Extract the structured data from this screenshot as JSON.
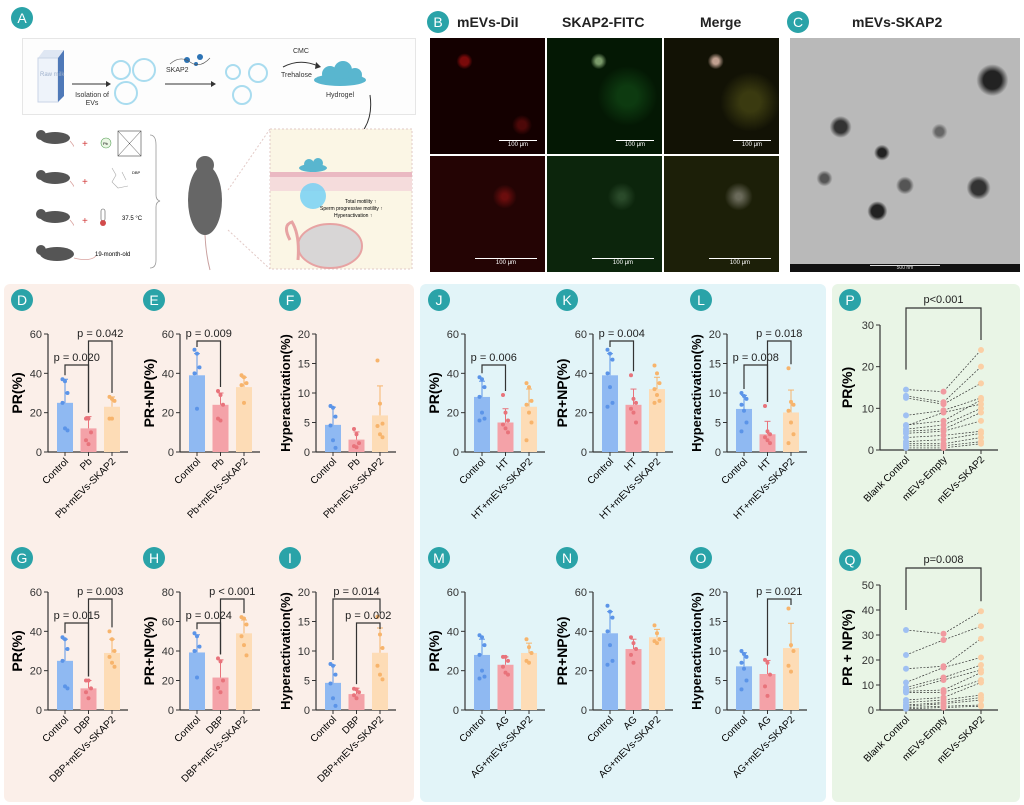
{
  "panelA": {
    "label": "A",
    "milk": "Raw milk",
    "isolation": "Isolation of EVs",
    "skap2": "SKAP2",
    "cmc": "CMC",
    "trehalose": "Trehalose",
    "hydrogel": "Hydrogel",
    "pb": "Pb",
    "dbp": "DBP",
    "temp": "37.5 °C",
    "age": "19-month-old",
    "outcome1": "Total motility ↑",
    "outcome2": "Sperm progressive motility ↑",
    "outcome3": "Hyperactivation ↑"
  },
  "panelB": {
    "label": "B",
    "col1": "mEVs-DiI",
    "col2": "SKAP2-FITC",
    "col3": "Merge",
    "scale": "100 μm"
  },
  "panelC": {
    "label": "C",
    "title": "mEVs-SKAP2",
    "scale": "500 nm"
  },
  "colors": {
    "pink_panel": "#fbefe9",
    "blue_panel": "#e2f4f8",
    "green_panel": "#e9f5e6",
    "label_teal": "#2aa3a8",
    "control": "#8fb9f2",
    "treatment": "#f4a2a8",
    "skap2": "#fddcb6"
  },
  "chart_data": [
    {
      "id": "D",
      "type": "bar",
      "label": "D",
      "ylabel": "PR(%)",
      "ylim": [
        0,
        60
      ],
      "yticks": [
        "0",
        "20",
        "40",
        "60"
      ],
      "categories": [
        "Control",
        "Pb",
        "Pb+mEVs-SKAP2"
      ],
      "values": [
        25,
        12,
        23
      ],
      "sd": [
        12,
        6,
        5
      ],
      "points": [
        [
          37,
          36,
          30,
          25,
          12,
          11
        ],
        [
          17,
          17,
          10,
          6,
          4
        ],
        [
          28,
          27,
          26,
          17,
          17
        ]
      ],
      "comparisons": [
        {
          "from": 0,
          "to": 1,
          "p": "p = 0.020",
          "level": 1
        },
        {
          "from": 1,
          "to": 2,
          "p": "p = 0.042",
          "level": 2
        }
      ]
    },
    {
      "id": "E",
      "type": "bar",
      "label": "E",
      "ylabel": "PR+NP(%)",
      "ylim": [
        0,
        60
      ],
      "yticks": [
        "0",
        "20",
        "40",
        "60"
      ],
      "categories": [
        "Control",
        "Pb",
        "Pb+mEVs-SKAP2"
      ],
      "values": [
        39,
        24,
        33
      ],
      "sd": [
        11,
        6,
        5
      ],
      "points": [
        [
          52,
          50,
          43,
          40,
          22
        ],
        [
          31,
          29,
          24,
          17,
          16
        ],
        [
          39,
          38,
          35,
          34,
          25
        ]
      ],
      "comparisons": [
        {
          "from": 0,
          "to": 1,
          "p": "p = 0.009",
          "level": 2
        }
      ]
    },
    {
      "id": "F",
      "type": "bar",
      "label": "F",
      "ylabel": "Hyperactivation(%)",
      "ylim": [
        0,
        20
      ],
      "yticks": [
        "0",
        "5",
        "10",
        "15",
        "20"
      ],
      "categories": [
        "Control",
        "Pb",
        "Pb+mEVs-SKAP2"
      ],
      "values": [
        4.6,
        2.1,
        6.2
      ],
      "sd": [
        3,
        1.3,
        5
      ],
      "points": [
        [
          7.8,
          7.5,
          6,
          4.5,
          2,
          0.7
        ],
        [
          3.9,
          3,
          1.5,
          1,
          0.8
        ],
        [
          15.5,
          8.2,
          4.8,
          4.4,
          3,
          2.5
        ]
      ],
      "comparisons": []
    },
    {
      "id": "G",
      "type": "bar",
      "label": "G",
      "ylabel": "PR(%)",
      "ylim": [
        0,
        60
      ],
      "yticks": [
        "0",
        "20",
        "40",
        "60"
      ],
      "categories": [
        "Control",
        "DBP",
        "DBP+mEVs-SKAP2"
      ],
      "values": [
        25,
        11,
        29
      ],
      "sd": [
        11,
        4,
        7
      ],
      "points": [
        [
          37,
          36,
          31,
          25,
          12,
          11
        ],
        [
          15,
          15,
          11,
          9,
          6
        ],
        [
          40,
          36,
          30,
          27,
          24,
          22
        ]
      ],
      "comparisons": [
        {
          "from": 0,
          "to": 1,
          "p": "p = 0.015",
          "level": 1
        },
        {
          "from": 1,
          "to": 2,
          "p": "p = 0.003",
          "level": 2
        }
      ]
    },
    {
      "id": "H",
      "type": "bar",
      "label": "H",
      "ylabel": "PR+NP(%)",
      "ylim": [
        0,
        80
      ],
      "yticks": [
        "0",
        "20",
        "40",
        "60",
        "80"
      ],
      "categories": [
        "Control",
        "DBP",
        "DBP+mEVs-SKAP2"
      ],
      "values": [
        39,
        22,
        52
      ],
      "sd": [
        12,
        12,
        9
      ],
      "points": [
        [
          52,
          50,
          43,
          40,
          22
        ],
        [
          35,
          33,
          20,
          15,
          12
        ],
        [
          63,
          62,
          58,
          50,
          44,
          37
        ]
      ],
      "comparisons": [
        {
          "from": 0,
          "to": 1,
          "p": "p = 0.024",
          "level": 1
        },
        {
          "from": 1,
          "to": 2,
          "p": "p < 0.001",
          "level": 2
        }
      ]
    },
    {
      "id": "I",
      "type": "bar",
      "label": "I",
      "ylabel": "Hyperactivation(%)",
      "ylim": [
        0,
        20
      ],
      "yticks": [
        "0",
        "5",
        "10",
        "15",
        "20"
      ],
      "categories": [
        "Control",
        "DBP",
        "DBP+mEVs-SKAP2"
      ],
      "values": [
        4.6,
        2.7,
        9.7
      ],
      "sd": [
        3,
        1,
        4.2
      ],
      "points": [
        [
          7.8,
          7.5,
          6,
          4.5,
          2,
          0.7
        ],
        [
          3.6,
          3.5,
          3,
          2.5,
          2
        ],
        [
          15.8,
          12.8,
          10.5,
          7.5,
          6,
          5.2
        ]
      ],
      "comparisons": [
        {
          "from": 1,
          "to": 2,
          "p": "p = 0.002",
          "level": 1
        },
        {
          "from": 0,
          "to": 2,
          "p": "p = 0.014",
          "level": 2
        }
      ]
    },
    {
      "id": "J",
      "type": "bar",
      "label": "J",
      "ylabel": "PR(%)",
      "ylim": [
        0,
        60
      ],
      "yticks": [
        "0",
        "20",
        "40",
        "60"
      ],
      "categories": [
        "Control",
        "HT",
        "HT+mEVs-SKAP2"
      ],
      "values": [
        28,
        15,
        23
      ],
      "sd": [
        8,
        7,
        9
      ],
      "points": [
        [
          38,
          37,
          33,
          28,
          20,
          17,
          16
        ],
        [
          29,
          20,
          16,
          14,
          12,
          10
        ],
        [
          35,
          33,
          26,
          24,
          20,
          15,
          6
        ]
      ],
      "comparisons": [
        {
          "from": 0,
          "to": 1,
          "p": "p = 0.006",
          "level": 1
        }
      ]
    },
    {
      "id": "K",
      "type": "bar",
      "label": "K",
      "ylabel": "PR+NP(%)",
      "ylim": [
        0,
        60
      ],
      "yticks": [
        "0",
        "20",
        "40",
        "60"
      ],
      "categories": [
        "Control",
        "HT",
        "HT+mEVs-SKAP2"
      ],
      "values": [
        39,
        24,
        32
      ],
      "sd": [
        11,
        8,
        6
      ],
      "points": [
        [
          52,
          50,
          47,
          40,
          33,
          25,
          23
        ],
        [
          39,
          27,
          25,
          22,
          20,
          15
        ],
        [
          44,
          40,
          35,
          32,
          29,
          26,
          25
        ]
      ],
      "comparisons": [
        {
          "from": 0,
          "to": 1,
          "p": "p = 0.004",
          "level": 2
        }
      ]
    },
    {
      "id": "L",
      "type": "bar",
      "label": "L",
      "ylabel": "Hyperactivation(%)",
      "ylim": [
        0,
        20
      ],
      "yticks": [
        "0",
        "5",
        "10",
        "15",
        "20"
      ],
      "categories": [
        "Control",
        "HT",
        "HT+mEVs-SKAP2"
      ],
      "values": [
        7.3,
        3,
        6.7
      ],
      "sd": [
        2.3,
        2.2,
        3.8
      ],
      "points": [
        [
          10,
          9.5,
          9,
          8,
          7,
          5,
          3.5
        ],
        [
          7.8,
          3.5,
          3,
          2.5,
          2,
          1.5
        ],
        [
          14.2,
          8.5,
          8,
          7,
          5,
          3,
          1.5
        ]
      ],
      "comparisons": [
        {
          "from": 0,
          "to": 1,
          "p": "p = 0.008",
          "level": 1
        },
        {
          "from": 1,
          "to": 2,
          "p": "p = 0.018",
          "level": 2
        }
      ]
    },
    {
      "id": "M",
      "type": "bar",
      "label": "M",
      "ylabel": "PR(%)",
      "ylim": [
        0,
        60
      ],
      "yticks": [
        "0",
        "20",
        "40",
        "60"
      ],
      "categories": [
        "Control",
        "AG",
        "AG+mEVs-SKAP2"
      ],
      "values": [
        28,
        23,
        29
      ],
      "sd": [
        8,
        4,
        5
      ],
      "points": [
        [
          38,
          37,
          33,
          28,
          20,
          17,
          16
        ],
        [
          27,
          27,
          25,
          22,
          19,
          18
        ],
        [
          36,
          32,
          29,
          25,
          24
        ]
      ],
      "comparisons": []
    },
    {
      "id": "N",
      "type": "bar",
      "label": "N",
      "ylabel": "PR+NP(%)",
      "ylim": [
        0,
        60
      ],
      "yticks": [
        "0",
        "20",
        "40",
        "60"
      ],
      "categories": [
        "Control",
        "AG",
        "AG+mEVs-SKAP2"
      ],
      "values": [
        39,
        31,
        37
      ],
      "sd": [
        11,
        5,
        4
      ],
      "points": [
        [
          53,
          50,
          47,
          40,
          33,
          25,
          23
        ],
        [
          37,
          34,
          31,
          28,
          24
        ],
        [
          43,
          39,
          36,
          35,
          34
        ]
      ],
      "comparisons": []
    },
    {
      "id": "O",
      "type": "bar",
      "label": "O",
      "ylabel": "Hyperactivation(%)",
      "ylim": [
        0,
        20
      ],
      "yticks": [
        "0",
        "5",
        "10",
        "15",
        "20"
      ],
      "categories": [
        "Control",
        "AG",
        "AG+mEVs-SKAP2"
      ],
      "values": [
        7.4,
        6.1,
        10.5
      ],
      "sd": [
        2.3,
        2.3,
        4.2
      ],
      "points": [
        [
          10,
          9.5,
          9,
          8,
          7,
          5,
          3.5
        ],
        [
          8.5,
          8,
          6,
          4,
          2.4
        ],
        [
          17.2,
          11,
          10,
          7.5,
          6.5
        ]
      ],
      "comparisons": [
        {
          "from": 1,
          "to": 2,
          "p": "p = 0.021",
          "level": 2
        }
      ]
    },
    {
      "id": "P",
      "type": "line",
      "label": "P",
      "ylabel": "PR(%)",
      "ylim": [
        0,
        30
      ],
      "yticks": [
        "0",
        "10",
        "20",
        "30"
      ],
      "categories": [
        "Blank Control",
        "mEVs-Empty",
        "mEVs-SKAP2"
      ],
      "paired": [
        [
          14.5,
          14,
          24
        ],
        [
          13,
          11.5,
          20
        ],
        [
          12.5,
          11,
          16
        ],
        [
          8.3,
          9.5,
          12.5
        ],
        [
          6,
          7,
          12
        ],
        [
          5.8,
          9,
          11
        ],
        [
          5,
          6,
          10
        ],
        [
          4.5,
          5,
          9
        ],
        [
          4,
          4.5,
          7
        ],
        [
          3,
          3.5,
          4.5
        ],
        [
          2,
          2.5,
          4
        ],
        [
          1.5,
          1.5,
          3
        ],
        [
          1,
          1,
          2
        ],
        [
          0.5,
          0.5,
          1.5
        ]
      ],
      "comparisons": [
        {
          "from": 0,
          "to": 2,
          "p": "p<0.001"
        }
      ]
    },
    {
      "id": "Q",
      "type": "line",
      "label": "Q",
      "ylabel": "PR + NP(%)",
      "ylim": [
        0,
        50
      ],
      "yticks": [
        "0",
        "10",
        "20",
        "30",
        "40",
        "50"
      ],
      "categories": [
        "Blank Control",
        "mEVs-Empty",
        "mEVs-SKAP2"
      ],
      "paired": [
        [
          32,
          30.5,
          39.5
        ],
        [
          22,
          28,
          33.5
        ],
        [
          16.5,
          17.5,
          28.5
        ],
        [
          11,
          17,
          21
        ],
        [
          9,
          13,
          18
        ],
        [
          8,
          12,
          16
        ],
        [
          7.5,
          8,
          15
        ],
        [
          7,
          7,
          12
        ],
        [
          4,
          5,
          11
        ],
        [
          3,
          4,
          6
        ],
        [
          2,
          3,
          5
        ],
        [
          1.5,
          2.5,
          4
        ],
        [
          1,
          1.5,
          2
        ],
        [
          0.5,
          1,
          1.5
        ]
      ],
      "comparisons": [
        {
          "from": 0,
          "to": 2,
          "p": "p=0.008"
        }
      ]
    }
  ]
}
